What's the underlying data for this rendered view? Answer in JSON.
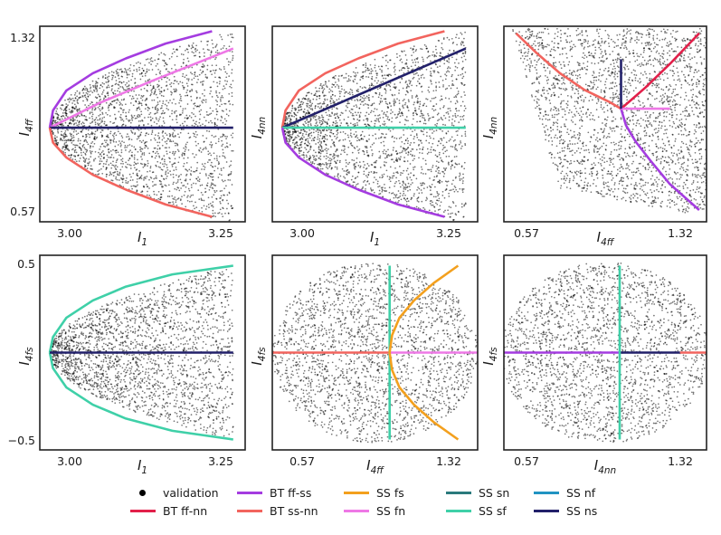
{
  "colors": {
    "points": "#000000",
    "bt_ff_nn": "#e2204a",
    "bt_ff_ss": "#a43ce0",
    "bt_ss_nn": "#f2645e",
    "ss_fs": "#f3a01e",
    "ss_fn": "#ee78e6",
    "ss_sn": "#2a7a7c",
    "ss_sf": "#3fd0a8",
    "ss_nf": "#2093c2",
    "ss_ns": "#22206a"
  },
  "chart_data": [
    {
      "type": "scatter",
      "id": "p1",
      "xlabel": {
        "main": "I",
        "sub": "1"
      },
      "ylabel": {
        "main": "I",
        "sub": "4ff"
      },
      "xticks": [
        "3.00",
        "3.25"
      ],
      "yticks": [
        "1.32",
        "0.57"
      ],
      "xlim": [
        2.97,
        3.28
      ],
      "ylim": [
        0.55,
        1.34
      ],
      "region": {
        "type": "parabola",
        "vertex_x": 2.985,
        "x_max": 3.262,
        "y_center": 0.93,
        "half_width": 0.39
      },
      "series": [
        {
          "name": "BT ff-ss",
          "color_key": "bt_ff_ss",
          "kind": "curve",
          "points": [
            [
              2.985,
              0.93
            ],
            [
              2.99,
              1.0
            ],
            [
              3.01,
              1.08
            ],
            [
              3.05,
              1.15
            ],
            [
              3.1,
              1.21
            ],
            [
              3.16,
              1.27
            ],
            [
              3.23,
              1.32
            ]
          ]
        },
        {
          "name": "SS fn",
          "color_key": "ss_fn",
          "kind": "curve",
          "points": [
            [
              2.985,
              0.93
            ],
            [
              3.06,
              1.03
            ],
            [
              3.14,
              1.12
            ],
            [
              3.262,
              1.25
            ]
          ]
        },
        {
          "name": "SS ns",
          "color_key": "ss_ns",
          "kind": "curve",
          "points": [
            [
              2.985,
              0.93
            ],
            [
              3.262,
              0.93
            ]
          ]
        },
        {
          "name": "BT ss-nn",
          "color_key": "bt_ss_nn",
          "kind": "curve",
          "points": [
            [
              2.985,
              0.93
            ],
            [
              2.99,
              0.87
            ],
            [
              3.01,
              0.81
            ],
            [
              3.05,
              0.74
            ],
            [
              3.1,
              0.68
            ],
            [
              3.16,
              0.62
            ],
            [
              3.23,
              0.57
            ]
          ]
        }
      ]
    },
    {
      "type": "scatter",
      "id": "p2",
      "xlabel": {
        "main": "I",
        "sub": "1"
      },
      "ylabel": {
        "main": "I",
        "sub": "4nn"
      },
      "xticks": [
        "3.00",
        "3.25"
      ],
      "yticks": [],
      "xlim": [
        2.97,
        3.28
      ],
      "ylim": [
        0.55,
        1.34
      ],
      "region": {
        "type": "parabola",
        "vertex_x": 2.985,
        "x_max": 3.262,
        "y_center": 0.93,
        "half_width": 0.39
      },
      "series": [
        {
          "name": "BT ss-nn",
          "color_key": "bt_ss_nn",
          "kind": "curve",
          "points": [
            [
              2.985,
              0.93
            ],
            [
              2.99,
              1.0
            ],
            [
              3.01,
              1.08
            ],
            [
              3.05,
              1.15
            ],
            [
              3.1,
              1.21
            ],
            [
              3.16,
              1.27
            ],
            [
              3.23,
              1.32
            ]
          ]
        },
        {
          "name": "SS ns",
          "color_key": "ss_ns",
          "kind": "curve",
          "points": [
            [
              2.985,
              0.93
            ],
            [
              3.262,
              1.25
            ]
          ]
        },
        {
          "name": "SS sf",
          "color_key": "ss_sf",
          "kind": "curve",
          "points": [
            [
              2.985,
              0.93
            ],
            [
              3.262,
              0.93
            ]
          ]
        },
        {
          "name": "BT ff-ss",
          "color_key": "bt_ff_ss",
          "kind": "curve",
          "points": [
            [
              2.985,
              0.93
            ],
            [
              2.99,
              0.87
            ],
            [
              3.01,
              0.81
            ],
            [
              3.05,
              0.74
            ],
            [
              3.1,
              0.68
            ],
            [
              3.16,
              0.62
            ],
            [
              3.23,
              0.57
            ]
          ]
        }
      ]
    },
    {
      "type": "scatter",
      "id": "p3",
      "xlabel": {
        "main": "I",
        "sub": "4ff"
      },
      "ylabel": {
        "main": "I",
        "sub": "4nn"
      },
      "xticks": [
        "0.57",
        "1.32"
      ],
      "yticks": [],
      "xlim": [
        0.52,
        1.35
      ],
      "ylim": [
        0.52,
        1.35
      ],
      "region": {
        "type": "wedge"
      },
      "series": [
        {
          "name": "BT ss-nn",
          "color_key": "bt_ss_nn",
          "kind": "curve",
          "points": [
            [
              0.57,
              1.32
            ],
            [
              0.65,
              1.24
            ],
            [
              0.75,
              1.15
            ],
            [
              0.85,
              1.08
            ],
            [
              0.95,
              1.03
            ],
            [
              1.0,
              1.0
            ]
          ]
        },
        {
          "name": "BT ff-nn",
          "color_key": "bt_ff_nn",
          "kind": "curve",
          "points": [
            [
              1.0,
              1.0
            ],
            [
              1.1,
              1.09
            ],
            [
              1.2,
              1.19
            ],
            [
              1.32,
              1.32
            ]
          ]
        },
        {
          "name": "BT ff-ss",
          "color_key": "bt_ff_ss",
          "kind": "curve",
          "points": [
            [
              1.0,
              1.0
            ],
            [
              1.02,
              0.93
            ],
            [
              1.06,
              0.86
            ],
            [
              1.12,
              0.78
            ],
            [
              1.2,
              0.68
            ],
            [
              1.32,
              0.57
            ]
          ]
        },
        {
          "name": "SS fn",
          "color_key": "ss_fn",
          "kind": "curve",
          "points": [
            [
              1.0,
              1.0
            ],
            [
              1.2,
              1.0
            ]
          ]
        },
        {
          "name": "SS ns",
          "color_key": "ss_ns",
          "kind": "curve",
          "points": [
            [
              1.0,
              1.0
            ],
            [
              1.0,
              1.21
            ]
          ]
        }
      ]
    },
    {
      "type": "scatter",
      "id": "p4",
      "xlabel": {
        "main": "I",
        "sub": "1"
      },
      "ylabel": {
        "main": "I",
        "sub": "4fs"
      },
      "xticks": [
        "3.00",
        "3.25"
      ],
      "yticks": [
        "0.5",
        "−0.5"
      ],
      "xlim": [
        2.97,
        3.28
      ],
      "ylim": [
        -0.56,
        0.56
      ],
      "region": {
        "type": "parabola",
        "vertex_x": 2.985,
        "x_max": 3.262,
        "y_center": 0.0,
        "half_width": 0.5
      },
      "series": [
        {
          "name": "SS sf",
          "color_key": "ss_sf",
          "kind": "curve",
          "points": [
            [
              2.985,
              0.0
            ],
            [
              2.99,
              0.09
            ],
            [
              3.01,
              0.2
            ],
            [
              3.05,
              0.3
            ],
            [
              3.1,
              0.38
            ],
            [
              3.17,
              0.45
            ],
            [
              3.262,
              0.5
            ]
          ]
        },
        {
          "name": "SS sf",
          "color_key": "ss_sf",
          "kind": "curve",
          "points": [
            [
              2.985,
              0.0
            ],
            [
              2.99,
              -0.09
            ],
            [
              3.01,
              -0.2
            ],
            [
              3.05,
              -0.3
            ],
            [
              3.1,
              -0.38
            ],
            [
              3.17,
              -0.45
            ],
            [
              3.262,
              -0.5
            ]
          ]
        },
        {
          "name": "SS ns",
          "color_key": "ss_ns",
          "kind": "curve",
          "points": [
            [
              2.985,
              0.0
            ],
            [
              3.262,
              0.0
            ]
          ]
        }
      ]
    },
    {
      "type": "scatter",
      "id": "p5",
      "xlabel": {
        "main": "I",
        "sub": "4ff"
      },
      "ylabel": {
        "main": "I",
        "sub": "4fs"
      },
      "xticks": [
        "0.57",
        "1.32"
      ],
      "yticks": [],
      "xlim": [
        0.52,
        1.36
      ],
      "ylim": [
        -0.56,
        0.56
      ],
      "region": {
        "type": "ellipse",
        "cx": 0.94,
        "cy": 0.0,
        "rx": 0.42,
        "ry": 0.52
      },
      "series": [
        {
          "name": "BT ss-nn",
          "color_key": "bt_ss_nn",
          "kind": "curve",
          "points": [
            [
              0.52,
              0.0
            ],
            [
              1.0,
              0.0
            ]
          ]
        },
        {
          "name": "SS fn",
          "color_key": "ss_fn",
          "kind": "curve",
          "points": [
            [
              1.0,
              0.0
            ],
            [
              1.36,
              0.0
            ]
          ]
        },
        {
          "name": "SS sf",
          "color_key": "ss_sf",
          "kind": "curve",
          "points": [
            [
              1.0,
              -0.5
            ],
            [
              1.0,
              0.5
            ]
          ]
        },
        {
          "name": "SS fs",
          "color_key": "ss_fs",
          "kind": "curve",
          "points": [
            [
              1.0,
              0.0
            ],
            [
              1.01,
              0.1
            ],
            [
              1.04,
              0.2
            ],
            [
              1.1,
              0.3
            ],
            [
              1.18,
              0.4
            ],
            [
              1.28,
              0.5
            ]
          ]
        },
        {
          "name": "SS fs",
          "color_key": "ss_fs",
          "kind": "curve",
          "points": [
            [
              1.0,
              0.0
            ],
            [
              1.01,
              -0.1
            ],
            [
              1.04,
              -0.2
            ],
            [
              1.1,
              -0.3
            ],
            [
              1.18,
              -0.4
            ],
            [
              1.28,
              -0.5
            ]
          ]
        }
      ]
    },
    {
      "type": "scatter",
      "id": "p6",
      "xlabel": {
        "main": "I",
        "sub": "4nn"
      },
      "ylabel": {
        "main": "I",
        "sub": "4fs"
      },
      "xticks": [
        "0.57",
        "1.32"
      ],
      "yticks": [],
      "xlim": [
        0.52,
        1.36
      ],
      "ylim": [
        -0.56,
        0.56
      ],
      "region": {
        "type": "ellipse",
        "cx": 0.94,
        "cy": 0.0,
        "rx": 0.43,
        "ry": 0.52
      },
      "series": [
        {
          "name": "BT ff-ss",
          "color_key": "bt_ff_ss",
          "kind": "curve",
          "points": [
            [
              0.52,
              0.0
            ],
            [
              1.0,
              0.0
            ]
          ]
        },
        {
          "name": "SS ns",
          "color_key": "ss_ns",
          "kind": "curve",
          "points": [
            [
              1.0,
              0.0
            ],
            [
              1.25,
              0.0
            ]
          ]
        },
        {
          "name": "BT ss-nn",
          "color_key": "bt_ss_nn",
          "kind": "curve",
          "points": [
            [
              1.25,
              0.0
            ],
            [
              1.36,
              0.0
            ]
          ]
        },
        {
          "name": "SS sf",
          "color_key": "ss_sf",
          "kind": "curve",
          "points": [
            [
              1.0,
              -0.5
            ],
            [
              1.0,
              0.5
            ]
          ]
        }
      ]
    }
  ],
  "legend": {
    "items": [
      {
        "label": "validation",
        "color_key": "points",
        "marker": "dot"
      },
      {
        "label": "BT ff-ss",
        "color_key": "bt_ff_ss",
        "marker": "line"
      },
      {
        "label": "SS fs",
        "color_key": "ss_fs",
        "marker": "line"
      },
      {
        "label": "SS sn",
        "color_key": "ss_sn",
        "marker": "line"
      },
      {
        "label": "SS nf",
        "color_key": "ss_nf",
        "marker": "line"
      },
      {
        "label": "BT ff-nn",
        "color_key": "bt_ff_nn",
        "marker": "line"
      },
      {
        "label": "BT ss-nn",
        "color_key": "bt_ss_nn",
        "marker": "line"
      },
      {
        "label": "SS fn",
        "color_key": "ss_fn",
        "marker": "line"
      },
      {
        "label": "SS sf",
        "color_key": "ss_sf",
        "marker": "line"
      },
      {
        "label": "SS ns",
        "color_key": "ss_ns",
        "marker": "line"
      }
    ]
  }
}
